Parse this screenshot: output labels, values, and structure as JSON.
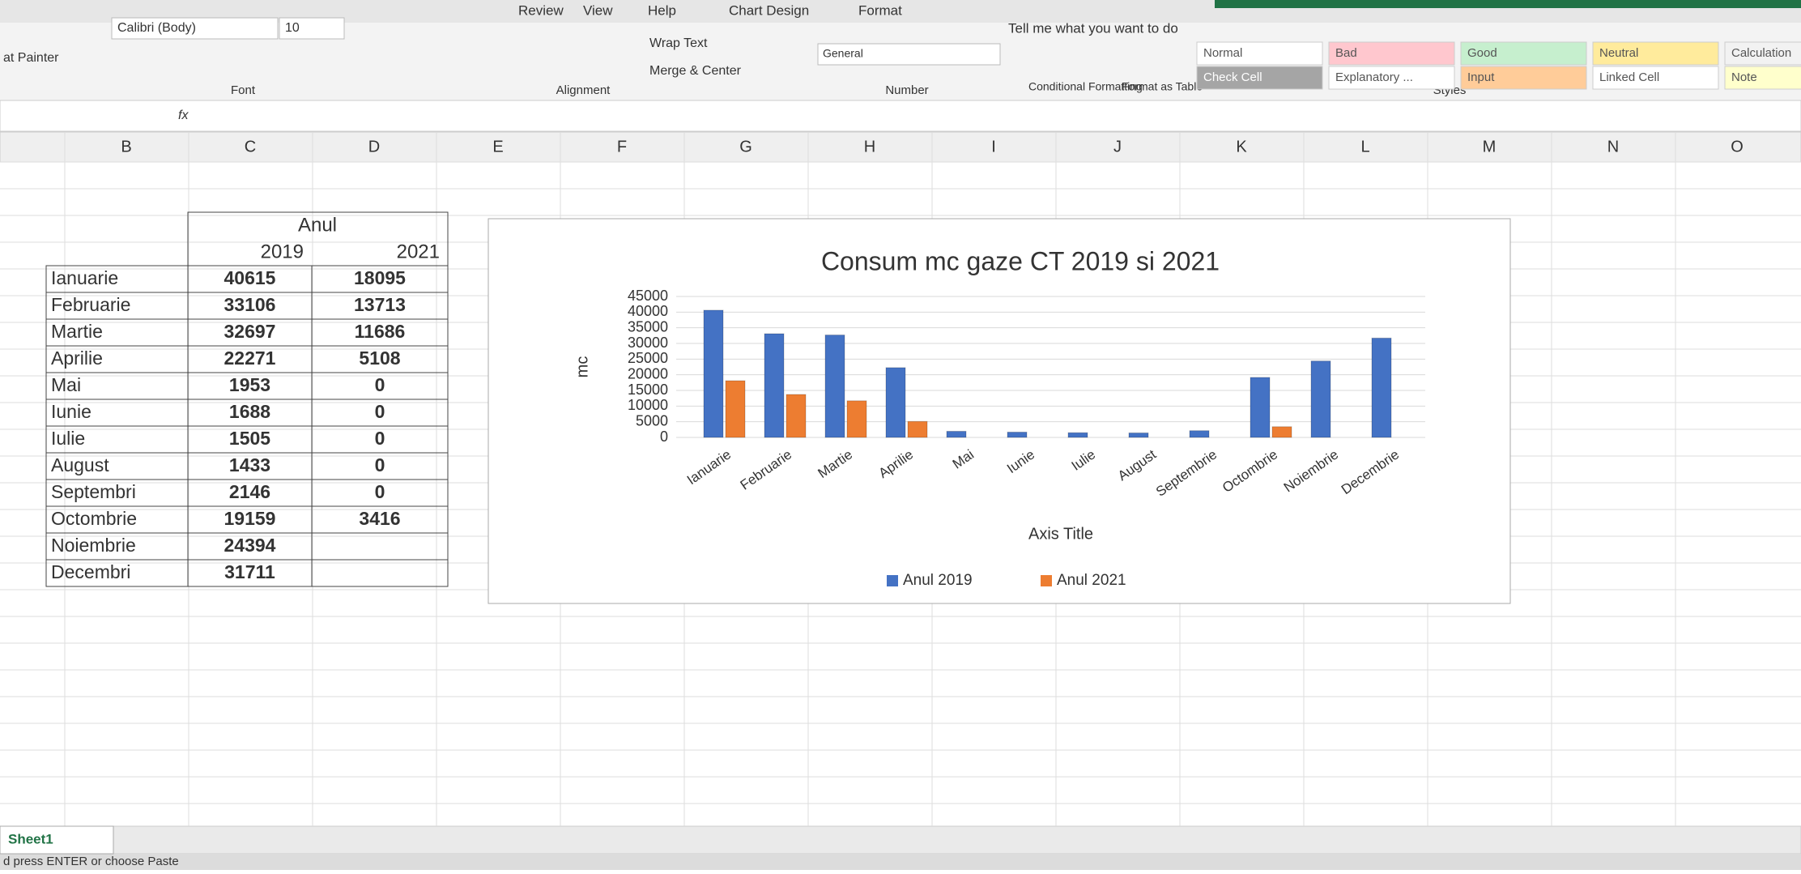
{
  "ribbon": {
    "tabs": [
      "Review",
      "View",
      "Help",
      "Chart Design",
      "Format"
    ],
    "tell_me": "Tell me what you want to do",
    "format_painter": "at Painter",
    "font_name": "Calibri (Body)",
    "font_size": "10",
    "groups": [
      "Font",
      "Alignment",
      "Number",
      "Styles"
    ],
    "wrap_text": "Wrap Text",
    "merge_center": "Merge & Center",
    "number_format": "General",
    "conditional_formatting": "Conditional Formatting",
    "format_as_table": "Format as Table",
    "cell_styles": [
      "Normal",
      "Bad",
      "Good",
      "Neutral",
      "Calculation",
      "Check Cell",
      "Explanatory ...",
      "Input",
      "Linked Cell",
      "Note"
    ]
  },
  "formula_bar": {
    "fx": "fx"
  },
  "columns": [
    "B",
    "C",
    "D",
    "E",
    "F",
    "G",
    "H",
    "I",
    "J",
    "K",
    "L",
    "M",
    "N",
    "O"
  ],
  "table": {
    "header": "Anul",
    "years": [
      "2019",
      "2021"
    ],
    "rows": [
      [
        "Ianuarie",
        40615,
        18095
      ],
      [
        "Februarie",
        33106,
        13713
      ],
      [
        "Martie",
        32697,
        11686
      ],
      [
        "Aprilie",
        22271,
        5108
      ],
      [
        "Mai",
        1953,
        0
      ],
      [
        "Iunie",
        1688,
        0
      ],
      [
        "Iulie",
        1505,
        0
      ],
      [
        "August",
        1433,
        0
      ],
      [
        "Septembri",
        2146,
        0
      ],
      [
        "Octombrie",
        19159,
        3416
      ],
      [
        "Noiembrie",
        24394,
        null
      ],
      [
        "Decembri",
        31711,
        null
      ]
    ]
  },
  "chart_data": {
    "type": "bar",
    "title": "Consum mc gaze CT 2019 si 2021",
    "y_label": "mc",
    "x_label": "Axis Title",
    "categories": [
      "Ianuarie",
      "Februarie",
      "Martie",
      "Aprilie",
      "Mai",
      "Iunie",
      "Iulie",
      "August",
      "Septembrie",
      "Octombrie",
      "Noiembrie",
      "Decembrie"
    ],
    "series": [
      {
        "name": "Anul 2019",
        "color": "#4472c4",
        "values": [
          40615,
          33106,
          32697,
          22271,
          1953,
          1688,
          1505,
          1433,
          2146,
          19159,
          24394,
          31711
        ]
      },
      {
        "name": "Anul 2021",
        "color": "#ed7d31",
        "values": [
          18095,
          13713,
          11686,
          5108,
          0,
          0,
          0,
          0,
          0,
          3416,
          null,
          null
        ]
      }
    ],
    "ylim": [
      0,
      45000
    ],
    "yticks": [
      0,
      5000,
      10000,
      15000,
      20000,
      25000,
      30000,
      35000,
      40000,
      45000
    ],
    "grid": true,
    "legend": "bottom"
  },
  "sheet_tab": "Sheet1",
  "status": "d press ENTER or choose Paste"
}
